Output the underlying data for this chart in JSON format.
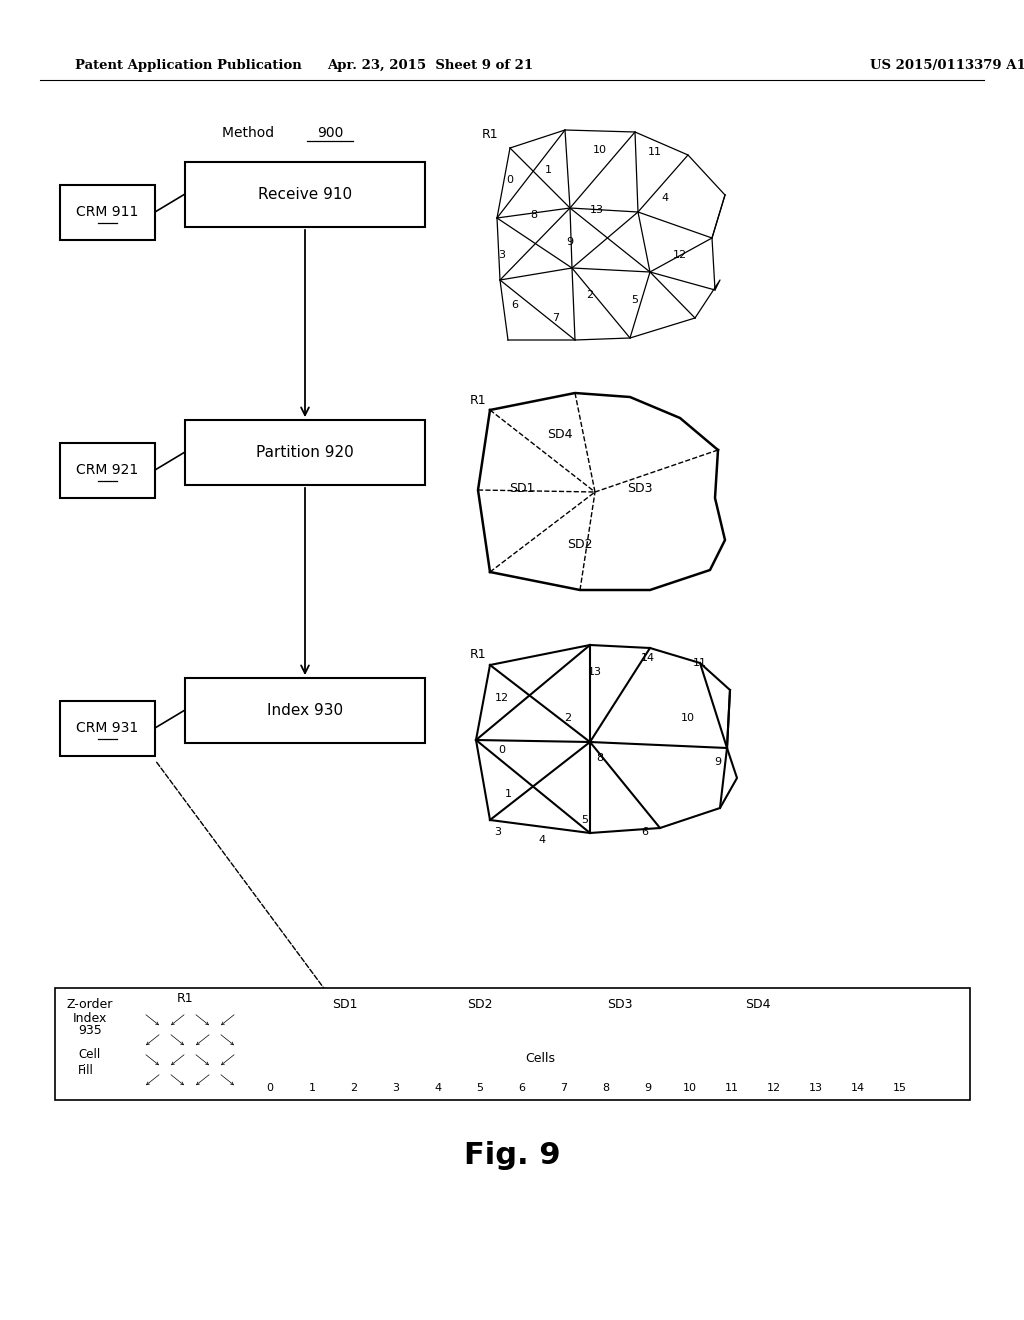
{
  "bg_color": "#ffffff",
  "header_left": "Patent Application Publication",
  "header_mid": "Apr. 23, 2015  Sheet 9 of 21",
  "header_right": "US 2015/0113379 A1",
  "fig_label": "Fig. 9"
}
